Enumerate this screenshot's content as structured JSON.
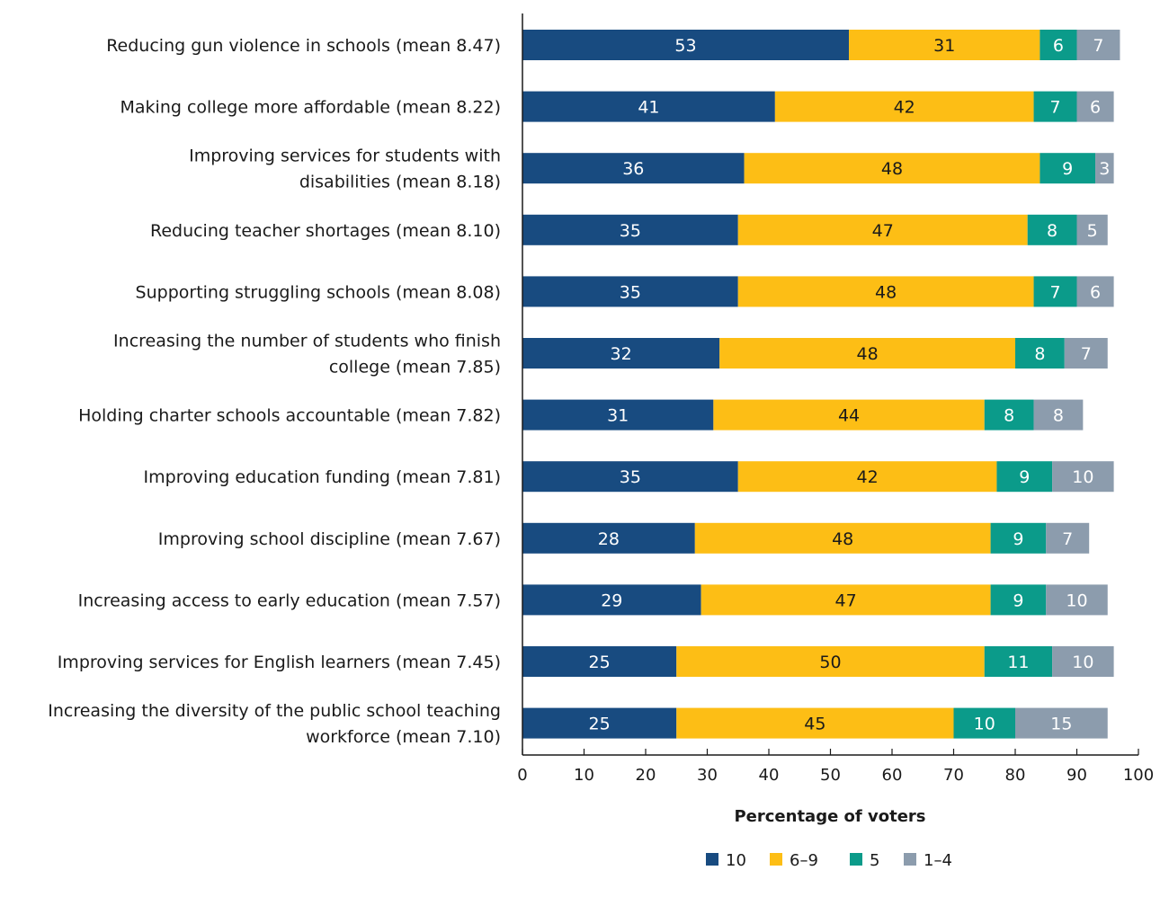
{
  "chart_data": {
    "type": "bar",
    "orientation": "horizontal",
    "stacked": true,
    "title": "",
    "xlabel": "Percentage of voters",
    "ylabel": "",
    "xlim": [
      0,
      100
    ],
    "xticks": [
      0,
      10,
      20,
      30,
      40,
      50,
      60,
      70,
      80,
      90,
      100
    ],
    "grid": false,
    "legend_position": "bottom",
    "categories": [
      [
        "Reducing gun violence in schools (mean 8.47)"
      ],
      [
        "Making college more affordable (mean 8.22)"
      ],
      [
        "Improving services for students with",
        "disabilities (mean 8.18)"
      ],
      [
        "Reducing teacher shortages (mean 8.10)"
      ],
      [
        "Supporting struggling schools (mean 8.08)"
      ],
      [
        "Increasing the number of students who finish",
        "college (mean 7.85)"
      ],
      [
        "Holding charter schools accountable (mean 7.82)"
      ],
      [
        "Improving education funding (mean 7.81)"
      ],
      [
        "Improving school discipline (mean 7.67)"
      ],
      [
        "Increasing access to early education (mean 7.57)"
      ],
      [
        "Improving services for English learners (mean 7.45)"
      ],
      [
        "Increasing the diversity of the public school teaching",
        "workforce (mean 7.10)"
      ]
    ],
    "series": [
      {
        "name": "10",
        "color": "#184b80",
        "text_color": "#ffffff",
        "values": [
          53,
          41,
          36,
          35,
          35,
          32,
          31,
          35,
          28,
          29,
          25,
          25
        ]
      },
      {
        "name": "6–9",
        "color": "#fdbe15",
        "text_color": "#1a1a1a",
        "values": [
          31,
          42,
          48,
          47,
          48,
          48,
          44,
          42,
          48,
          47,
          50,
          45
        ]
      },
      {
        "name": "5",
        "color": "#0b9b8a",
        "text_color": "#ffffff",
        "values": [
          6,
          7,
          9,
          8,
          7,
          8,
          8,
          9,
          9,
          9,
          11,
          10
        ]
      },
      {
        "name": "1–4",
        "color": "#8c9cad",
        "text_color": "#ffffff",
        "values": [
          7,
          6,
          3,
          5,
          6,
          7,
          8,
          10,
          7,
          10,
          10,
          15
        ]
      }
    ]
  }
}
